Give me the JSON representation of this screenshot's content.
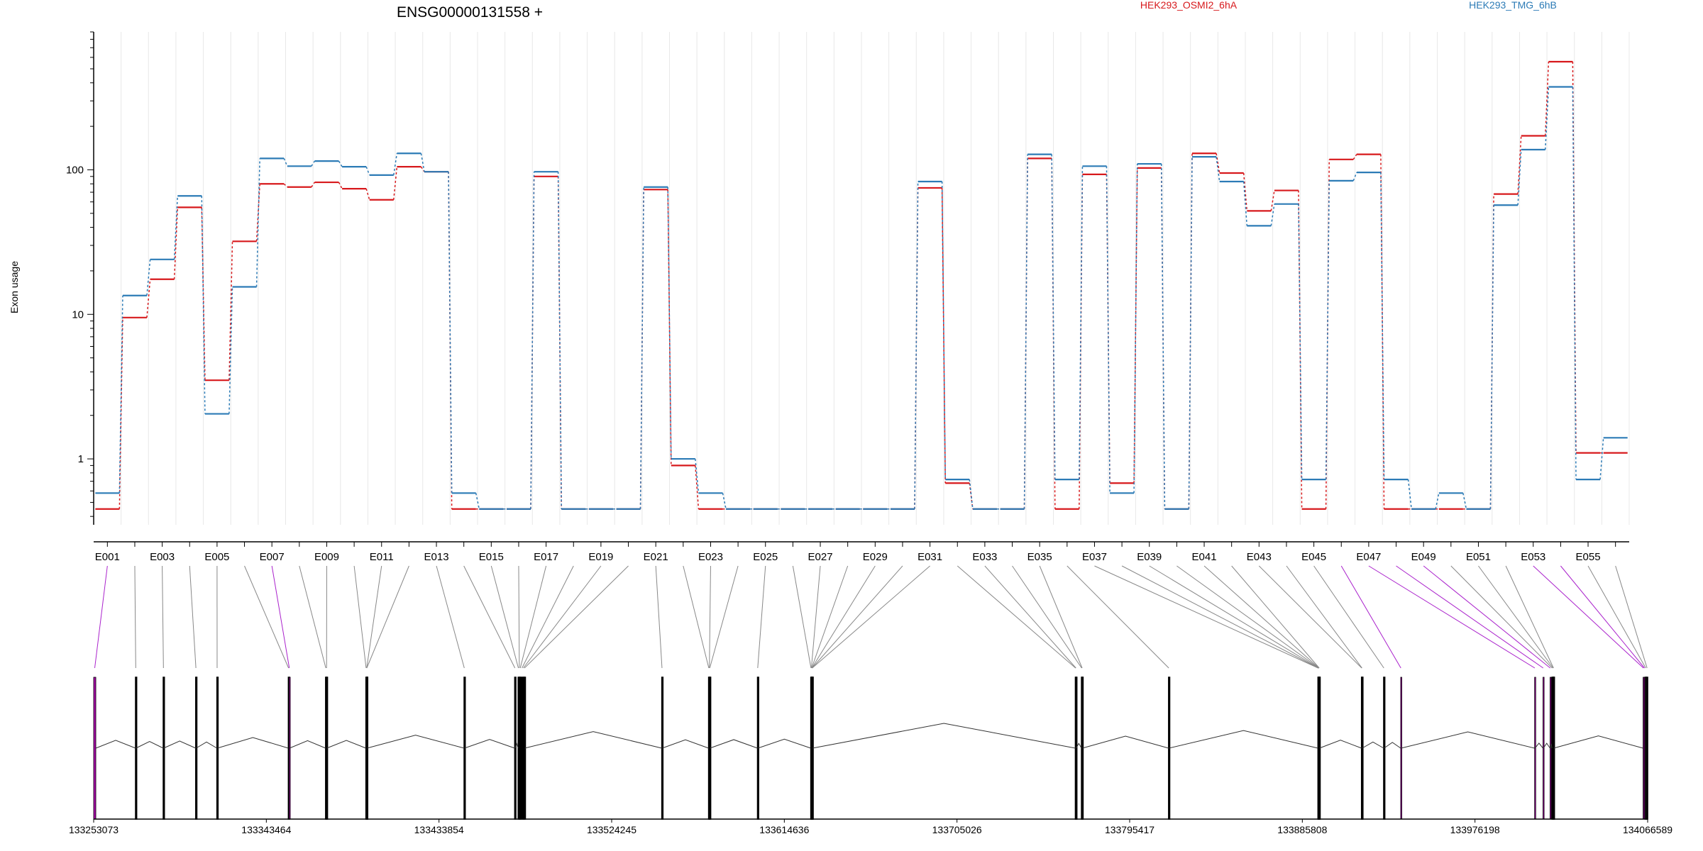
{
  "chart_data": {
    "type": "line",
    "title": "ENSG00000131558 +",
    "ylabel": "Exon usage",
    "xlabel": "",
    "y_scale": "log",
    "ylim": [
      0.35,
      900
    ],
    "y_ticks": [
      1,
      10,
      100
    ],
    "y_tick_labels": [
      "1",
      "10",
      "100"
    ],
    "x_tick_labels": [
      "E001",
      "E003",
      "E005",
      "E007",
      "E009",
      "E011",
      "E013",
      "E015",
      "E017",
      "E019",
      "E021",
      "E023",
      "E025",
      "E027",
      "E029",
      "E031",
      "E033",
      "E035",
      "E037",
      "E039",
      "E041",
      "E043",
      "E045",
      "E047",
      "E049",
      "E051",
      "E053",
      "E055"
    ],
    "categories": [
      "E001",
      "E002",
      "E003",
      "E004",
      "E005",
      "E006",
      "E007",
      "E008",
      "E009",
      "E010",
      "E011",
      "E012",
      "E013",
      "E014",
      "E015",
      "E016",
      "E017",
      "E018",
      "E019",
      "E020",
      "E021",
      "E022",
      "E023",
      "E024",
      "E025",
      "E026",
      "E027",
      "E028",
      "E029",
      "E030",
      "E031",
      "E032",
      "E033",
      "E034",
      "E035",
      "E036",
      "E037",
      "E038",
      "E039",
      "E040",
      "E041",
      "E042",
      "E043",
      "E044",
      "E045",
      "E046",
      "E047",
      "E048",
      "E049",
      "E050",
      "E051",
      "E052",
      "E053",
      "E054",
      "E055",
      "E056"
    ],
    "legend_placement": "top",
    "grid": true,
    "series": [
      {
        "name": "HEK293_OSMI2_6hA",
        "color": "#d7191c",
        "values": [
          0.45,
          9.5,
          17.5,
          55,
          3.5,
          32,
          80,
          76,
          82,
          74,
          62,
          105,
          97,
          0.45,
          0.45,
          0.45,
          90,
          0.45,
          0.45,
          0.45,
          73,
          0.9,
          0.45,
          0.45,
          0.45,
          0.45,
          0.45,
          0.45,
          0.45,
          0.45,
          75,
          0.68,
          0.45,
          0.45,
          120,
          0.45,
          93,
          0.68,
          103,
          0.45,
          130,
          95,
          52,
          72,
          0.45,
          118,
          128,
          0.45,
          0.45,
          0.45,
          0.45,
          68,
          172,
          560,
          1.1,
          1.1
        ]
      },
      {
        "name": "HEK293_TMG_6hB",
        "color": "#2c7bb6",
        "values": [
          0.58,
          13.5,
          24,
          66,
          2.05,
          15.5,
          120,
          106,
          115,
          105,
          92,
          130,
          97,
          0.58,
          0.45,
          0.45,
          97,
          0.45,
          0.45,
          0.45,
          76,
          1.0,
          0.58,
          0.45,
          0.45,
          0.45,
          0.45,
          0.45,
          0.45,
          0.45,
          83,
          0.72,
          0.45,
          0.45,
          128,
          0.72,
          106,
          0.58,
          110,
          0.45,
          123,
          83,
          41,
          58,
          0.72,
          84,
          96,
          0.72,
          0.45,
          0.58,
          0.45,
          57,
          138,
          375,
          0.72,
          1.4
        ]
      }
    ],
    "genomic_axis": {
      "ticks": [
        133253073,
        133343464,
        133433854,
        133524245,
        133614636,
        133705026,
        133795417,
        133885808,
        133976198,
        134066589
      ],
      "range": [
        133253073,
        134066589
      ]
    },
    "exon_bins": [
      {
        "id": "E001",
        "start": 133253073,
        "end": 133254200,
        "flag": true
      },
      {
        "id": "E002",
        "start": 133275000,
        "end": 133275200
      },
      {
        "id": "E003",
        "start": 133289500,
        "end": 133289700
      },
      {
        "id": "E004",
        "start": 133306500,
        "end": 133306700
      },
      {
        "id": "E005",
        "start": 133317600,
        "end": 133317800
      },
      {
        "id": "E006",
        "start": 133355000,
        "end": 133355200
      },
      {
        "id": "E007",
        "start": 133355400,
        "end": 133355600,
        "flag": true
      },
      {
        "id": "E008",
        "start": 133374500,
        "end": 133374700
      },
      {
        "id": "E009",
        "start": 133374900,
        "end": 133375100
      },
      {
        "id": "E010",
        "start": 133395600,
        "end": 133395800
      },
      {
        "id": "E011",
        "start": 133395900,
        "end": 133396100
      },
      {
        "id": "E012",
        "start": 133395950,
        "end": 133396150
      },
      {
        "id": "E013",
        "start": 133447000,
        "end": 133447200
      },
      {
        "id": "E014",
        "start": 133473500,
        "end": 133473700
      },
      {
        "id": "E015",
        "start": 133475300,
        "end": 133475500
      },
      {
        "id": "E016",
        "start": 133475800,
        "end": 133476000
      },
      {
        "id": "E017",
        "start": 133476300,
        "end": 133476500
      },
      {
        "id": "E018",
        "start": 133477200,
        "end": 133477400
      },
      {
        "id": "E019",
        "start": 133477900,
        "end": 133478100
      },
      {
        "id": "E020",
        "start": 133478500,
        "end": 133478700
      },
      {
        "id": "E021",
        "start": 133550500,
        "end": 133550700
      },
      {
        "id": "E022",
        "start": 133575000,
        "end": 133575200
      },
      {
        "id": "E023",
        "start": 133575300,
        "end": 133575500
      },
      {
        "id": "E024",
        "start": 133575500,
        "end": 133575700
      },
      {
        "id": "E025",
        "start": 133600600,
        "end": 133600800
      },
      {
        "id": "E026",
        "start": 133628500,
        "end": 133628700
      },
      {
        "id": "E027",
        "start": 133628700,
        "end": 133628900
      },
      {
        "id": "E028",
        "start": 133628850,
        "end": 133629050
      },
      {
        "id": "E029",
        "start": 133628950,
        "end": 133629150
      },
      {
        "id": "E030",
        "start": 133629050,
        "end": 133629250
      },
      {
        "id": "E031",
        "start": 133629150,
        "end": 133629350
      },
      {
        "id": "E032",
        "start": 133767000,
        "end": 133767200
      },
      {
        "id": "E033",
        "start": 133767200,
        "end": 133767400
      },
      {
        "id": "E034",
        "start": 133770200,
        "end": 133770400
      },
      {
        "id": "E035",
        "start": 133770450,
        "end": 133770650
      },
      {
        "id": "E036",
        "start": 133815800,
        "end": 133816000
      },
      {
        "id": "E037",
        "start": 133894000,
        "end": 133894200
      },
      {
        "id": "E038",
        "start": 133894150,
        "end": 133894350
      },
      {
        "id": "E039",
        "start": 133894250,
        "end": 133894450
      },
      {
        "id": "E040",
        "start": 133894350,
        "end": 133894550
      },
      {
        "id": "E041",
        "start": 133894450,
        "end": 133894650
      },
      {
        "id": "E042",
        "start": 133894550,
        "end": 133894750
      },
      {
        "id": "E043",
        "start": 133916800,
        "end": 133917000
      },
      {
        "id": "E044",
        "start": 133916950,
        "end": 133917150
      },
      {
        "id": "E045",
        "start": 133928400,
        "end": 133928600
      },
      {
        "id": "E046",
        "start": 133937300,
        "end": 133937500,
        "flag": true
      },
      {
        "id": "E047",
        "start": 134007400,
        "end": 134007600,
        "flag": true
      },
      {
        "id": "E048",
        "start": 134011800,
        "end": 134012000,
        "flag": true
      },
      {
        "id": "E049",
        "start": 134015500,
        "end": 134015700,
        "flag": true
      },
      {
        "id": "E050",
        "start": 134016500,
        "end": 134016700
      },
      {
        "id": "E051",
        "start": 134017000,
        "end": 134017200
      },
      {
        "id": "E052",
        "start": 134017200,
        "end": 134017400
      },
      {
        "id": "E053",
        "start": 134064200,
        "end": 134064600,
        "flag": true
      },
      {
        "id": "E054",
        "start": 134064700,
        "end": 134065200,
        "flag": true
      },
      {
        "id": "E055",
        "start": 134065300,
        "end": 134065900
      },
      {
        "id": "E056",
        "start": 134066000,
        "end": 134066589
      }
    ]
  }
}
